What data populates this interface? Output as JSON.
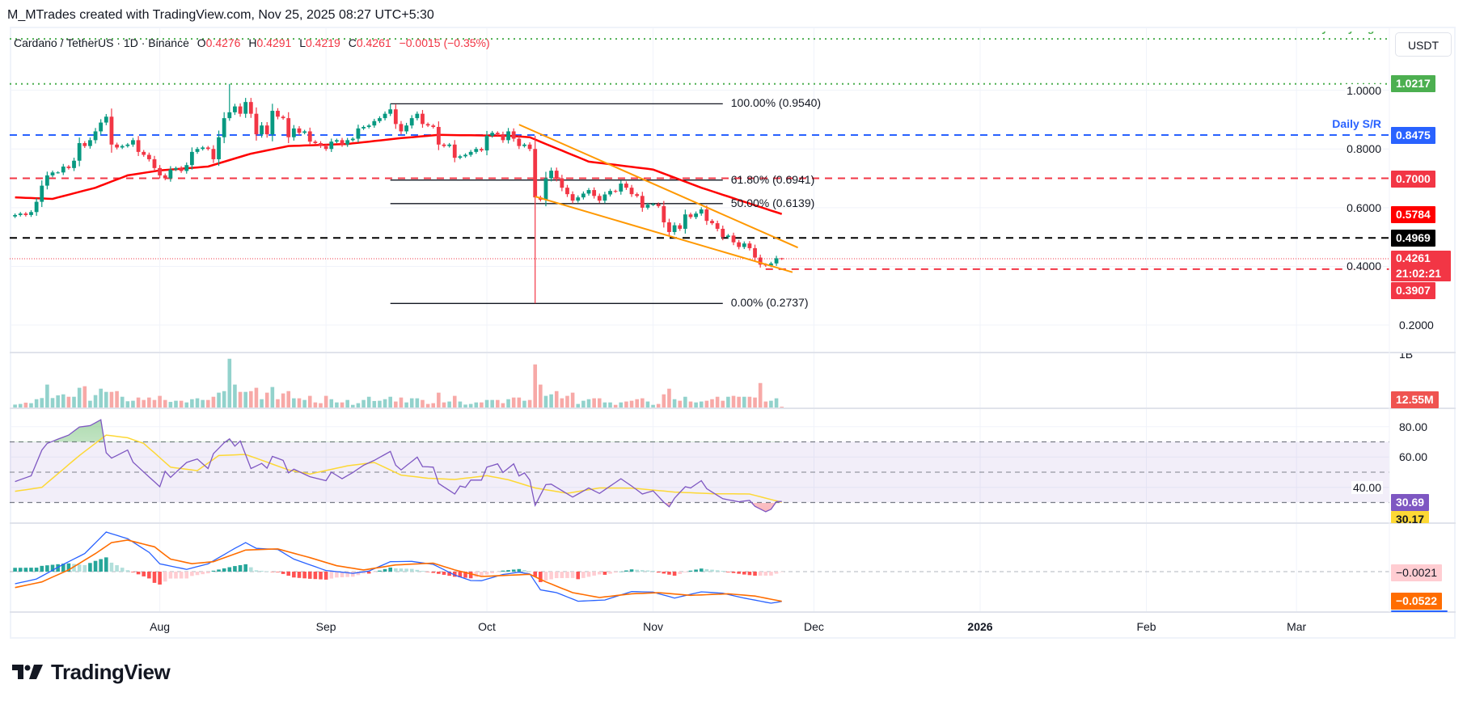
{
  "header": {
    "attribution": "M_MTrades created with TradingView.com, Nov 25, 2025 08:27 UTC+5:30"
  },
  "legend": {
    "symbol": "Cardano / TetherUS · 1D · Binance",
    "o_label": "O",
    "o": "0.4276",
    "h_label": "H",
    "h": "0.4291",
    "l_label": "L",
    "l": "0.4219",
    "c_label": "C",
    "c": "0.4261",
    "change": "−0.0015 (−0.35%)"
  },
  "currency_button": "USDT",
  "logo": {
    "text": "TradingView"
  },
  "chart_data": {
    "type": "candlestick",
    "start_date": "2025-07-05",
    "colors": {
      "up": "#089981",
      "down": "#f23645",
      "vol_up": "#92d2cc",
      "vol_down": "#f7a9a7",
      "ma": "#ff0000",
      "channel": "#ff9800",
      "rsi": "#7e57c2",
      "rsi_ma": "#fdd835",
      "macd": "#2962ff",
      "signal": "#ff6d00"
    },
    "first_open": 0.57,
    "close": [
      0.575,
      0.58,
      0.575,
      0.585,
      0.62,
      0.675,
      0.71,
      0.72,
      0.72,
      0.74,
      0.735,
      0.76,
      0.82,
      0.81,
      0.83,
      0.86,
      0.89,
      0.91,
      0.815,
      0.805,
      0.81,
      0.815,
      0.83,
      0.79,
      0.78,
      0.765,
      0.735,
      0.71,
      0.7,
      0.73,
      0.735,
      0.725,
      0.745,
      0.79,
      0.8,
      0.805,
      0.8,
      0.765,
      0.84,
      0.905,
      0.925,
      0.945,
      0.92,
      0.96,
      0.92,
      0.85,
      0.88,
      0.85,
      0.93,
      0.91,
      0.905,
      0.84,
      0.87,
      0.855,
      0.86,
      0.825,
      0.82,
      0.81,
      0.8,
      0.825,
      0.83,
      0.815,
      0.83,
      0.835,
      0.87,
      0.875,
      0.88,
      0.895,
      0.905,
      0.92,
      0.935,
      0.885,
      0.86,
      0.88,
      0.905,
      0.92,
      0.885,
      0.88,
      0.875,
      0.815,
      0.81,
      0.815,
      0.77,
      0.775,
      0.78,
      0.79,
      0.8,
      0.795,
      0.845,
      0.855,
      0.85,
      0.83,
      0.86,
      0.835,
      0.81,
      0.815,
      0.8,
      0.635,
      0.627,
      0.7,
      0.726,
      0.7,
      0.668,
      0.646,
      0.624,
      0.635,
      0.648,
      0.66,
      0.64,
      0.624,
      0.645,
      0.657,
      0.655,
      0.682,
      0.668,
      0.646,
      0.64,
      0.6,
      0.61,
      0.612,
      0.605,
      0.55,
      0.517,
      0.54,
      0.528,
      0.577,
      0.568,
      0.58,
      0.594,
      0.555,
      0.547,
      0.528,
      0.5,
      0.505,
      0.482,
      0.466,
      0.478,
      0.462,
      0.43,
      0.406,
      0.403,
      0.41,
      0.4276,
      0.4261
    ],
    "wick_overrides": {
      "2025-08-14": {
        "high": 1.0217
      },
      "2025-09-13": {
        "high": 0.954
      },
      "2025-10-10": {
        "low": 0.2737
      },
      "2025-11-25": {
        "open": 0.4276,
        "high": 0.4291,
        "low": 0.4219
      }
    },
    "volume_millions": [
      29,
      34,
      44,
      40,
      71,
      80,
      185,
      80,
      101,
      109,
      90,
      90,
      160,
      172,
      59,
      103,
      153,
      128,
      128,
      134,
      90,
      55,
      59,
      84,
      65,
      84,
      65,
      97,
      65,
      50,
      59,
      59,
      46,
      71,
      78,
      65,
      65,
      90,
      122,
      134,
      386,
      185,
      128,
      128,
      134,
      160,
      71,
      122,
      166,
      71,
      116,
      134,
      78,
      78,
      65,
      97,
      46,
      40,
      97,
      71,
      46,
      46,
      65,
      27,
      40,
      65,
      90,
      57,
      59,
      71,
      90,
      53,
      84,
      46,
      78,
      78,
      65,
      34,
      40,
      122,
      46,
      53,
      97,
      53,
      29,
      34,
      46,
      46,
      65,
      65,
      65,
      40,
      71,
      84,
      84,
      59,
      65,
      342,
      185,
      97,
      109,
      134,
      78,
      97,
      122,
      34,
      59,
      71,
      78,
      78,
      46,
      46,
      27,
      46,
      53,
      59,
      71,
      78,
      53,
      27,
      34,
      109,
      153,
      71,
      59,
      90,
      53,
      46,
      53,
      59,
      71,
      90,
      59,
      90,
      97,
      90,
      90,
      90,
      84,
      197,
      53,
      59,
      78,
      12.55
    ],
    "moving_average": [
      [
        "2025-07-05",
        0.635
      ],
      [
        "2025-07-12",
        0.63
      ],
      [
        "2025-07-20",
        0.668
      ],
      [
        "2025-07-26",
        0.71
      ],
      [
        "2025-08-01",
        0.727
      ],
      [
        "2025-08-10",
        0.74
      ],
      [
        "2025-08-18",
        0.784
      ],
      [
        "2025-08-25",
        0.81
      ],
      [
        "2025-09-05",
        0.817
      ],
      [
        "2025-09-15",
        0.837
      ],
      [
        "2025-09-22",
        0.848
      ],
      [
        "2025-10-05",
        0.845
      ],
      [
        "2025-10-09",
        0.84
      ],
      [
        "2025-10-12",
        0.817
      ],
      [
        "2025-10-20",
        0.757
      ],
      [
        "2025-11-01",
        0.73
      ],
      [
        "2025-11-10",
        0.668
      ],
      [
        "2025-11-18",
        0.62
      ],
      [
        "2025-11-25",
        0.5784
      ]
    ],
    "channel": {
      "upper": [
        [
          "2025-10-07",
          0.883
        ],
        [
          "2025-11-28",
          0.464
        ]
      ],
      "lower": [
        [
          "2025-10-10",
          0.638
        ],
        [
          "2025-11-27",
          0.38
        ]
      ]
    },
    "fibonacci": {
      "from": "2025-09-13",
      "to": "2025-11-14",
      "levels": [
        {
          "price": 0.954,
          "label": "100.00% (0.9540)"
        },
        {
          "price": 0.6941,
          "label": "61.80% (0.6941)"
        },
        {
          "price": 0.6139,
          "label": "50.00% (0.6139)"
        },
        {
          "price": 0.2737,
          "label": "0.00% (0.2737)"
        }
      ]
    },
    "levels": [
      {
        "price": 1.175,
        "color": "#4caf50",
        "line": "dotted",
        "text": "yearly high"
      },
      {
        "price": 1.0217,
        "color": "#4caf50",
        "line": "dotted",
        "tag": "1.0217"
      },
      {
        "price": 0.8475,
        "color": "#2962ff",
        "line": "dashed",
        "text": "Daily S/R",
        "tag": "0.8475"
      },
      {
        "price": 0.7,
        "color": "#f23645",
        "line": "dashed",
        "tag": "0.7000"
      },
      {
        "price": 0.4969,
        "color": "#000000",
        "line": "dashed",
        "tag": "0.4969"
      },
      {
        "price": 0.4261,
        "color": "#f23645",
        "line": "fine-dotted",
        "tag": "0.4261",
        "countdown": "21:02:21"
      },
      {
        "price": 0.3907,
        "color": "#f23645",
        "line": "dashed",
        "from": "2025-11-22",
        "tag": "0.3907"
      }
    ],
    "ma_tag": {
      "price": 0.5784,
      "tag": "0.5784",
      "color": "#ff0000"
    },
    "price_axis": {
      "ticks": [
        "1.0000",
        "0.8000",
        "0.6000",
        "0.4000",
        "0.2000"
      ],
      "scale": "linear"
    },
    "volume_axis": {
      "tick": "1B",
      "last_tag": "12.55M",
      "last_color": "#ef5350"
    },
    "rsi": {
      "ticks": [
        "80.00",
        "60.00",
        "40.00"
      ],
      "bands": [
        70,
        50,
        30
      ],
      "last": "30.69",
      "ma_last": "30.17",
      "line": [
        [
          "2025-07-05",
          43.8
        ],
        [
          "2025-07-07",
          46.4
        ],
        [
          "2025-07-08",
          47.6
        ],
        [
          "2025-07-10",
          64.6
        ],
        [
          "2025-07-11",
          69
        ],
        [
          "2025-07-13",
          71.8
        ],
        [
          "2025-07-15",
          74.5
        ],
        [
          "2025-07-17",
          79.8
        ],
        [
          "2025-07-19",
          80.7
        ],
        [
          "2025-07-21",
          84.6
        ],
        [
          "2025-07-22",
          62.8
        ],
        [
          "2025-07-23",
          59.3
        ],
        [
          "2025-07-26",
          64.6
        ],
        [
          "2025-07-27",
          56.6
        ],
        [
          "2025-08-01",
          40.4
        ],
        [
          "2025-08-02",
          50.6
        ],
        [
          "2025-08-03",
          46.6
        ],
        [
          "2025-08-06",
          56.4
        ],
        [
          "2025-08-08",
          58.7
        ],
        [
          "2025-08-10",
          52.4
        ],
        [
          "2025-08-11",
          62.2
        ],
        [
          "2025-08-13",
          69.4
        ],
        [
          "2025-08-14",
          72
        ],
        [
          "2025-08-15",
          67.2
        ],
        [
          "2025-08-16",
          70.6
        ],
        [
          "2025-08-18",
          52.4
        ],
        [
          "2025-08-20",
          55.8
        ],
        [
          "2025-08-21",
          52.6
        ],
        [
          "2025-08-22",
          60.4
        ],
        [
          "2025-08-24",
          57.8
        ],
        [
          "2025-08-25",
          49.6
        ],
        [
          "2025-08-26",
          52
        ],
        [
          "2025-08-29",
          47
        ],
        [
          "2025-09-01",
          44.4
        ],
        [
          "2025-09-02",
          50
        ],
        [
          "2025-09-04",
          45.7
        ],
        [
          "2025-09-06",
          49.8
        ],
        [
          "2025-09-08",
          54.6
        ],
        [
          "2025-09-10",
          57.8
        ],
        [
          "2025-09-13",
          63.7
        ],
        [
          "2025-09-14",
          54.6
        ],
        [
          "2025-09-15",
          51.5
        ],
        [
          "2025-09-18",
          59.9
        ],
        [
          "2025-09-19",
          53.7
        ],
        [
          "2025-09-21",
          53.3
        ],
        [
          "2025-09-22",
          42.6
        ],
        [
          "2025-09-25",
          35.6
        ],
        [
          "2025-09-26",
          40.9
        ],
        [
          "2025-09-27",
          40
        ],
        [
          "2025-09-28",
          44.8
        ],
        [
          "2025-09-30",
          44.8
        ],
        [
          "2025-10-01",
          53.3
        ],
        [
          "2025-10-03",
          55.5
        ],
        [
          "2025-10-04",
          49.8
        ],
        [
          "2025-10-06",
          55.5
        ],
        [
          "2025-10-07",
          47.5
        ],
        [
          "2025-10-08",
          49.5
        ],
        [
          "2025-10-09",
          44.8
        ],
        [
          "2025-10-10",
          28.1
        ],
        [
          "2025-10-12",
          41.8
        ],
        [
          "2025-10-13",
          42.1
        ],
        [
          "2025-10-17",
          33.6
        ],
        [
          "2025-10-20",
          39.6
        ],
        [
          "2025-10-22",
          36
        ],
        [
          "2025-10-26",
          45.7
        ],
        [
          "2025-10-28",
          40.9
        ],
        [
          "2025-10-30",
          35.6
        ],
        [
          "2025-11-01",
          37.7
        ],
        [
          "2025-11-03",
          30.2
        ],
        [
          "2025-11-04",
          27.2
        ],
        [
          "2025-11-05",
          32.9
        ],
        [
          "2025-11-07",
          40.4
        ],
        [
          "2025-11-08",
          39.6
        ],
        [
          "2025-11-10",
          44.4
        ],
        [
          "2025-11-11",
          39.1
        ],
        [
          "2025-11-14",
          32.5
        ],
        [
          "2025-11-17",
          30.5
        ],
        [
          "2025-11-19",
          31.4
        ],
        [
          "2025-11-20",
          27.5
        ],
        [
          "2025-11-22",
          23.9
        ],
        [
          "2025-11-23",
          25.6
        ],
        [
          "2025-11-24",
          30.6
        ],
        [
          "2025-11-25",
          30.69
        ]
      ],
      "ma": [
        [
          "2025-07-05",
          37.4
        ],
        [
          "2025-07-10",
          40
        ],
        [
          "2025-07-17",
          61
        ],
        [
          "2025-07-22",
          74.5
        ],
        [
          "2025-07-26",
          72.7
        ],
        [
          "2025-07-29",
          69
        ],
        [
          "2025-08-03",
          53.3
        ],
        [
          "2025-08-08",
          51
        ],
        [
          "2025-08-12",
          61
        ],
        [
          "2025-08-17",
          61.7
        ],
        [
          "2025-08-21",
          56.6
        ],
        [
          "2025-08-25",
          51.5
        ],
        [
          "2025-08-29",
          48.8
        ],
        [
          "2025-09-05",
          54.2
        ],
        [
          "2025-09-10",
          56.4
        ],
        [
          "2025-09-15",
          48.1
        ],
        [
          "2025-09-20",
          46
        ],
        [
          "2025-09-25",
          45.2
        ],
        [
          "2025-10-01",
          47.7
        ],
        [
          "2025-10-05",
          45
        ],
        [
          "2025-10-10",
          39.6
        ],
        [
          "2025-10-16",
          36.1
        ],
        [
          "2025-10-22",
          39.6
        ],
        [
          "2025-10-28",
          39.5
        ],
        [
          "2025-11-05",
          36.9
        ],
        [
          "2025-11-12",
          35.8
        ],
        [
          "2025-11-19",
          35.6
        ],
        [
          "2025-11-25",
          30.17
        ]
      ]
    },
    "macd": {
      "hist_last": "−0.0021",
      "signal_last": "−0.0522",
      "line": [
        [
          "2025-07-05",
          -0.0213
        ],
        [
          "2025-07-09",
          -0.013
        ],
        [
          "2025-07-14",
          0.0128
        ],
        [
          "2025-07-18",
          0.0318
        ],
        [
          "2025-07-22",
          0.0697
        ],
        [
          "2025-07-26",
          0.058
        ],
        [
          "2025-07-30",
          0.034
        ],
        [
          "2025-08-01",
          0.0137
        ],
        [
          "2025-08-06",
          0.004
        ],
        [
          "2025-08-10",
          0.0137
        ],
        [
          "2025-08-15",
          0.041
        ],
        [
          "2025-08-17",
          0.051
        ],
        [
          "2025-08-19",
          0.041
        ],
        [
          "2025-08-23",
          0.039
        ],
        [
          "2025-08-26",
          0.022
        ],
        [
          "2025-09-01",
          0.002
        ],
        [
          "2025-09-06",
          -0.003
        ],
        [
          "2025-09-09",
          0.001
        ],
        [
          "2025-09-13",
          0.0175
        ],
        [
          "2025-09-17",
          0.018
        ],
        [
          "2025-09-21",
          0.0128
        ],
        [
          "2025-09-25",
          -0.006
        ],
        [
          "2025-09-28",
          -0.0156
        ],
        [
          "2025-09-30",
          -0.016
        ],
        [
          "2025-10-04",
          -0.005
        ],
        [
          "2025-10-07",
          -0.001
        ],
        [
          "2025-10-09",
          -0.004
        ],
        [
          "2025-10-11",
          -0.032
        ],
        [
          "2025-10-14",
          -0.037
        ],
        [
          "2025-10-18",
          -0.052
        ],
        [
          "2025-10-23",
          -0.05
        ],
        [
          "2025-10-28",
          -0.035
        ],
        [
          "2025-11-01",
          -0.036
        ],
        [
          "2025-11-05",
          -0.0465
        ],
        [
          "2025-11-10",
          -0.0355
        ],
        [
          "2025-11-14",
          -0.038
        ],
        [
          "2025-11-18",
          -0.0465
        ],
        [
          "2025-11-23",
          -0.0555
        ],
        [
          "2025-11-25",
          -0.0525
        ]
      ],
      "signal": [
        [
          "2025-07-05",
          -0.028
        ],
        [
          "2025-07-10",
          -0.018
        ],
        [
          "2025-07-15",
          0.003
        ],
        [
          "2025-07-20",
          0.0318
        ],
        [
          "2025-07-23",
          0.051
        ],
        [
          "2025-07-26",
          0.0555
        ],
        [
          "2025-07-31",
          0.0436
        ],
        [
          "2025-08-03",
          0.022
        ],
        [
          "2025-08-07",
          0.014
        ],
        [
          "2025-08-11",
          0.0175
        ],
        [
          "2025-08-17",
          0.038
        ],
        [
          "2025-08-23",
          0.04
        ],
        [
          "2025-08-29",
          0.0246
        ],
        [
          "2025-09-03",
          0.0104
        ],
        [
          "2025-09-08",
          0.003
        ],
        [
          "2025-09-14",
          0.0118
        ],
        [
          "2025-09-21",
          0.015
        ],
        [
          "2025-09-25",
          0.003
        ],
        [
          "2025-09-30",
          -0.0085
        ],
        [
          "2025-10-09",
          -0.0047
        ],
        [
          "2025-10-12",
          -0.018
        ],
        [
          "2025-10-17",
          -0.037
        ],
        [
          "2025-10-22",
          -0.0455
        ],
        [
          "2025-10-28",
          -0.039
        ],
        [
          "2025-11-02",
          -0.037
        ],
        [
          "2025-11-08",
          -0.0417
        ],
        [
          "2025-11-15",
          -0.039
        ],
        [
          "2025-11-20",
          -0.043
        ],
        [
          "2025-11-25",
          -0.0522
        ]
      ]
    },
    "time_axis": [
      {
        "label": "Aug",
        "date": "2025-08-01"
      },
      {
        "label": "Sep",
        "date": "2025-09-01"
      },
      {
        "label": "Oct",
        "date": "2025-10-01"
      },
      {
        "label": "Nov",
        "date": "2025-11-01"
      },
      {
        "label": "Dec",
        "date": "2025-12-01"
      },
      {
        "label": "2026",
        "date": "2026-01-01",
        "bold": true
      },
      {
        "label": "Feb",
        "date": "2026-02-01"
      },
      {
        "label": "Mar",
        "date": "2026-03-01"
      }
    ]
  }
}
